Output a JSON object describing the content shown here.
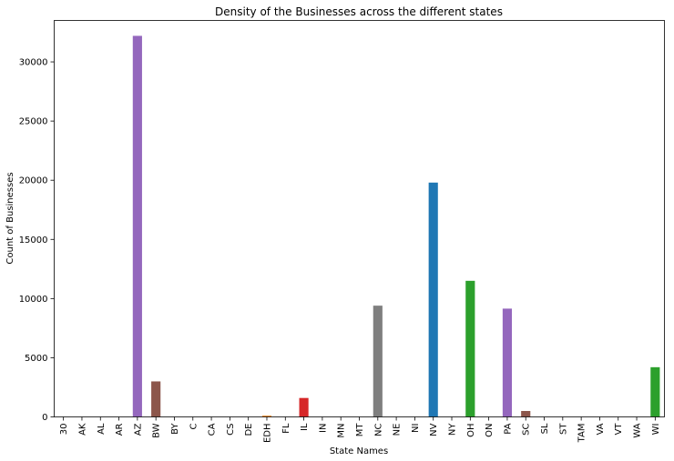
{
  "chart_data": {
    "type": "bar",
    "title": "Density of the Businesses across the different states",
    "xlabel": "State Names",
    "ylabel": "Count of Businesses",
    "ylim": [
      0,
      33500
    ],
    "yticks": [
      0,
      5000,
      10000,
      15000,
      20000,
      25000,
      30000
    ],
    "grid": false,
    "categories": [
      "30",
      "AK",
      "AL",
      "AR",
      "AZ",
      "BW",
      "BY",
      "C",
      "CA",
      "CS",
      "DE",
      "EDH",
      "FL",
      "IL",
      "IN",
      "MN",
      "MT",
      "NC",
      "NE",
      "NI",
      "NV",
      "NY",
      "OH",
      "ON",
      "PA",
      "SC",
      "SL",
      "ST",
      "TAM",
      "VA",
      "VT",
      "WA",
      "WI"
    ],
    "values": [
      1,
      1,
      1,
      1,
      32200,
      3000,
      1,
      1,
      1,
      1,
      1,
      100,
      1,
      1600,
      1,
      1,
      1,
      9400,
      1,
      1,
      19800,
      1,
      11500,
      1,
      9150,
      500,
      1,
      1,
      1,
      1,
      1,
      1,
      4200
    ],
    "colors": [
      "#1f77b4",
      "#ff7f0e",
      "#2ca02c",
      "#d62728",
      "#9467bd",
      "#8c564b",
      "#e377c2",
      "#7f7f7f",
      "#bcbd22",
      "#17becf",
      "#1f77b4",
      "#ff7f0e",
      "#2ca02c",
      "#d62728",
      "#9467bd",
      "#8c564b",
      "#e377c2",
      "#7f7f7f",
      "#bcbd22",
      "#17becf",
      "#1f77b4",
      "#ff7f0e",
      "#2ca02c",
      "#d62728",
      "#9467bd",
      "#8c564b",
      "#e377c2",
      "#7f7f7f",
      "#bcbd22",
      "#17becf",
      "#1f77b4",
      "#ff7f0e",
      "#2ca02c"
    ]
  }
}
